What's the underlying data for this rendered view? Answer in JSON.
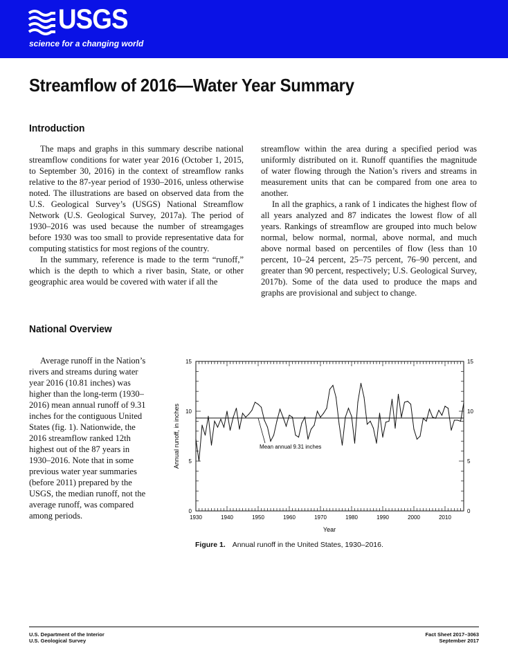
{
  "header": {
    "logo_text": "USGS",
    "tagline": "science for a changing world",
    "brand_color": "#0a12e6"
  },
  "title": "Streamflow of 2016—Water Year Summary",
  "introduction": {
    "heading": "Introduction",
    "paragraphs": [
      "The maps and graphs in this summary describe national streamflow conditions for water year 2016 (October 1, 2015, to September 30, 2016) in the context of streamflow ranks relative to the 87-year period of 1930–2016, unless otherwise noted. The illustrations are based on observed data from the U.S. Geological Survey’s (USGS) National Streamflow Network (U.S. Geological Survey, 2017a). The period of 1930–2016 was used because the number of streamgages before 1930 was too small to provide representative data for computing statistics for most regions of the country.",
      "In the summary, reference is made to the term “runoff,” which is the depth to which a river basin, State, or other geographic area would be covered with water if all the",
      "streamflow within the area during a specified period was uniformly distributed on it. Runoff quantifies the magnitude of water flowing through the Nation’s rivers and streams in measurement units that can be compared from one area to another.",
      "In all the graphics, a rank of 1 indicates the highest flow of all years analyzed and 87 indicates the lowest flow of all years. Rankings of streamflow are grouped into much below normal, below normal, normal, above normal, and much above normal based on percentiles of flow (less than 10 percent, 10–24 percent, 25–75 percent, 76–90 percent, and greater than 90 percent, respectively; U.S. Geological Survey, 2017b). Some of the data used to produce the maps and graphs are provisional and subject to change."
    ]
  },
  "national_overview": {
    "heading": "National Overview",
    "paragraph": "Average runoff in the Nation’s rivers and streams during water year 2016 (10.81 inches) was higher than the long-term (1930–2016) mean annual runoff of 9.31 inches for the contiguous United States (fig. 1). Nationwide, the 2016 streamflow ranked 12th highest out of the 87 years in 1930–2016. Note that in some previous water year summaries (before 2011) prepared by the USGS, the median runoff, not the average runoff, was compared among periods."
  },
  "chart_data": {
    "type": "line",
    "xlabel": "Year",
    "ylabel": "Annual runoff, in inches",
    "xlim": [
      1930,
      2016
    ],
    "ylim": [
      0,
      15
    ],
    "x_ticks": [
      "1930",
      "1940",
      "1950",
      "1960",
      "1970",
      "1980",
      "1990",
      "2000",
      "2010"
    ],
    "y_ticks_left": [
      "0",
      "5",
      "10",
      "15"
    ],
    "y_ticks_right": [
      "0",
      "5",
      "10",
      "15"
    ],
    "mean_value": 9.31,
    "annotation": "Mean annual 9.31 inches",
    "x": [
      1930,
      1931,
      1932,
      1933,
      1934,
      1935,
      1936,
      1937,
      1938,
      1939,
      1940,
      1941,
      1942,
      1943,
      1944,
      1945,
      1946,
      1947,
      1948,
      1949,
      1950,
      1951,
      1952,
      1953,
      1954,
      1955,
      1956,
      1957,
      1958,
      1959,
      1960,
      1961,
      1962,
      1963,
      1964,
      1965,
      1966,
      1967,
      1968,
      1969,
      1970,
      1971,
      1972,
      1973,
      1974,
      1975,
      1976,
      1977,
      1978,
      1979,
      1980,
      1981,
      1982,
      1983,
      1984,
      1985,
      1986,
      1987,
      1988,
      1989,
      1990,
      1991,
      1992,
      1993,
      1994,
      1995,
      1996,
      1997,
      1998,
      1999,
      2000,
      2001,
      2002,
      2003,
      2004,
      2005,
      2006,
      2007,
      2008,
      2009,
      2010,
      2011,
      2012,
      2013,
      2014,
      2015,
      2016
    ],
    "values": [
      7.2,
      5.0,
      8.6,
      7.6,
      9.5,
      6.6,
      9.0,
      8.4,
      9.2,
      8.4,
      10.0,
      8.1,
      9.4,
      10.3,
      8.2,
      9.8,
      9.4,
      9.7,
      10.1,
      10.9,
      10.7,
      10.4,
      9.1,
      8.4,
      7.0,
      7.6,
      9.0,
      10.2,
      9.4,
      8.5,
      9.6,
      9.4,
      7.6,
      7.4,
      8.8,
      9.4,
      7.2,
      8.2,
      8.6,
      10.0,
      9.4,
      9.8,
      10.3,
      12.2,
      12.6,
      11.4,
      8.7,
      6.6,
      9.4,
      10.3,
      9.5,
      6.8,
      10.9,
      12.8,
      11.4,
      8.7,
      9.0,
      8.3,
      6.8,
      9.8,
      7.4,
      8.9,
      9.0,
      11.2,
      8.3,
      11.7,
      9.4,
      10.9,
      11.0,
      10.7,
      8.2,
      7.2,
      7.5,
      9.3,
      9.0,
      10.2,
      9.4,
      9.3,
      10.1,
      9.6,
      10.5,
      10.3,
      8.1,
      9.1,
      9.1,
      9.0,
      10.81
    ]
  },
  "figure_caption": {
    "label": "Figure 1.",
    "text": "Annual runoff in the United States, 1930–2016."
  },
  "footer": {
    "left_line1": "U.S. Department of the Interior",
    "left_line2": "U.S. Geological Survey",
    "right_line1": "Fact Sheet 2017–3063",
    "right_line2": "September 2017"
  }
}
